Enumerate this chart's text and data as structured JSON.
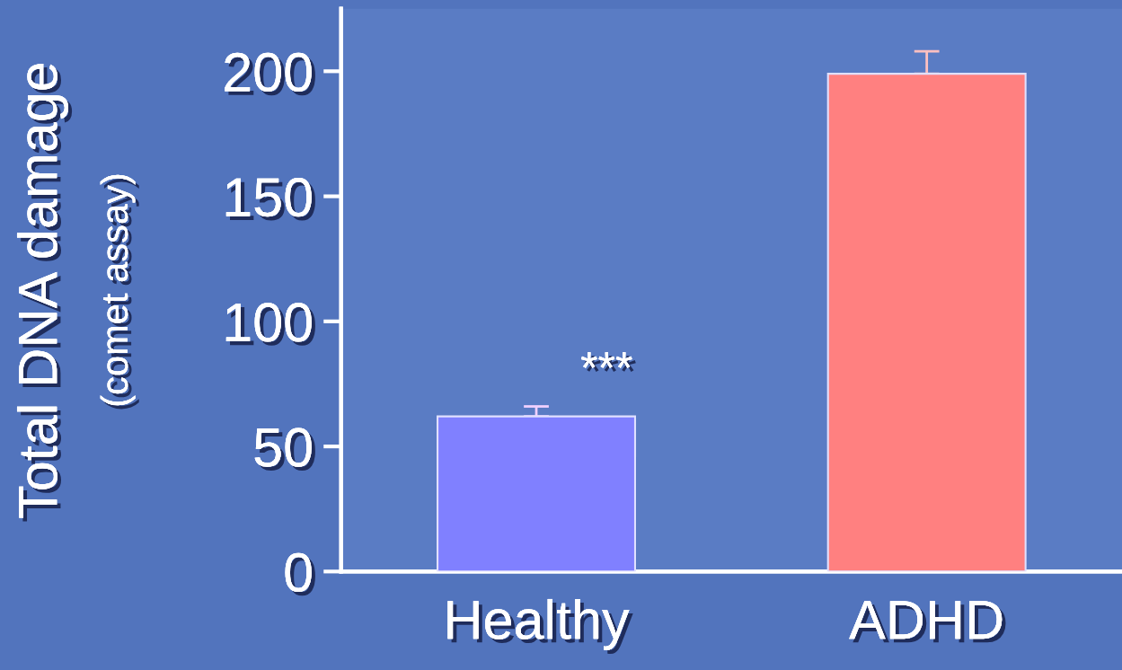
{
  "chart_data": {
    "type": "bar",
    "ylabel": "Total DNA damage\n(comet assay)",
    "categories": [
      "Healthy",
      "ADHD"
    ],
    "values": [
      62,
      199
    ],
    "colors": [
      "#8080ff",
      "#ff8080"
    ],
    "errors": [
      4,
      9
    ],
    "ylim": [
      0,
      225
    ],
    "yticks": [
      0,
      50,
      100,
      150,
      200
    ],
    "grid": false,
    "legend": false,
    "annotations": [
      "***"
    ]
  }
}
